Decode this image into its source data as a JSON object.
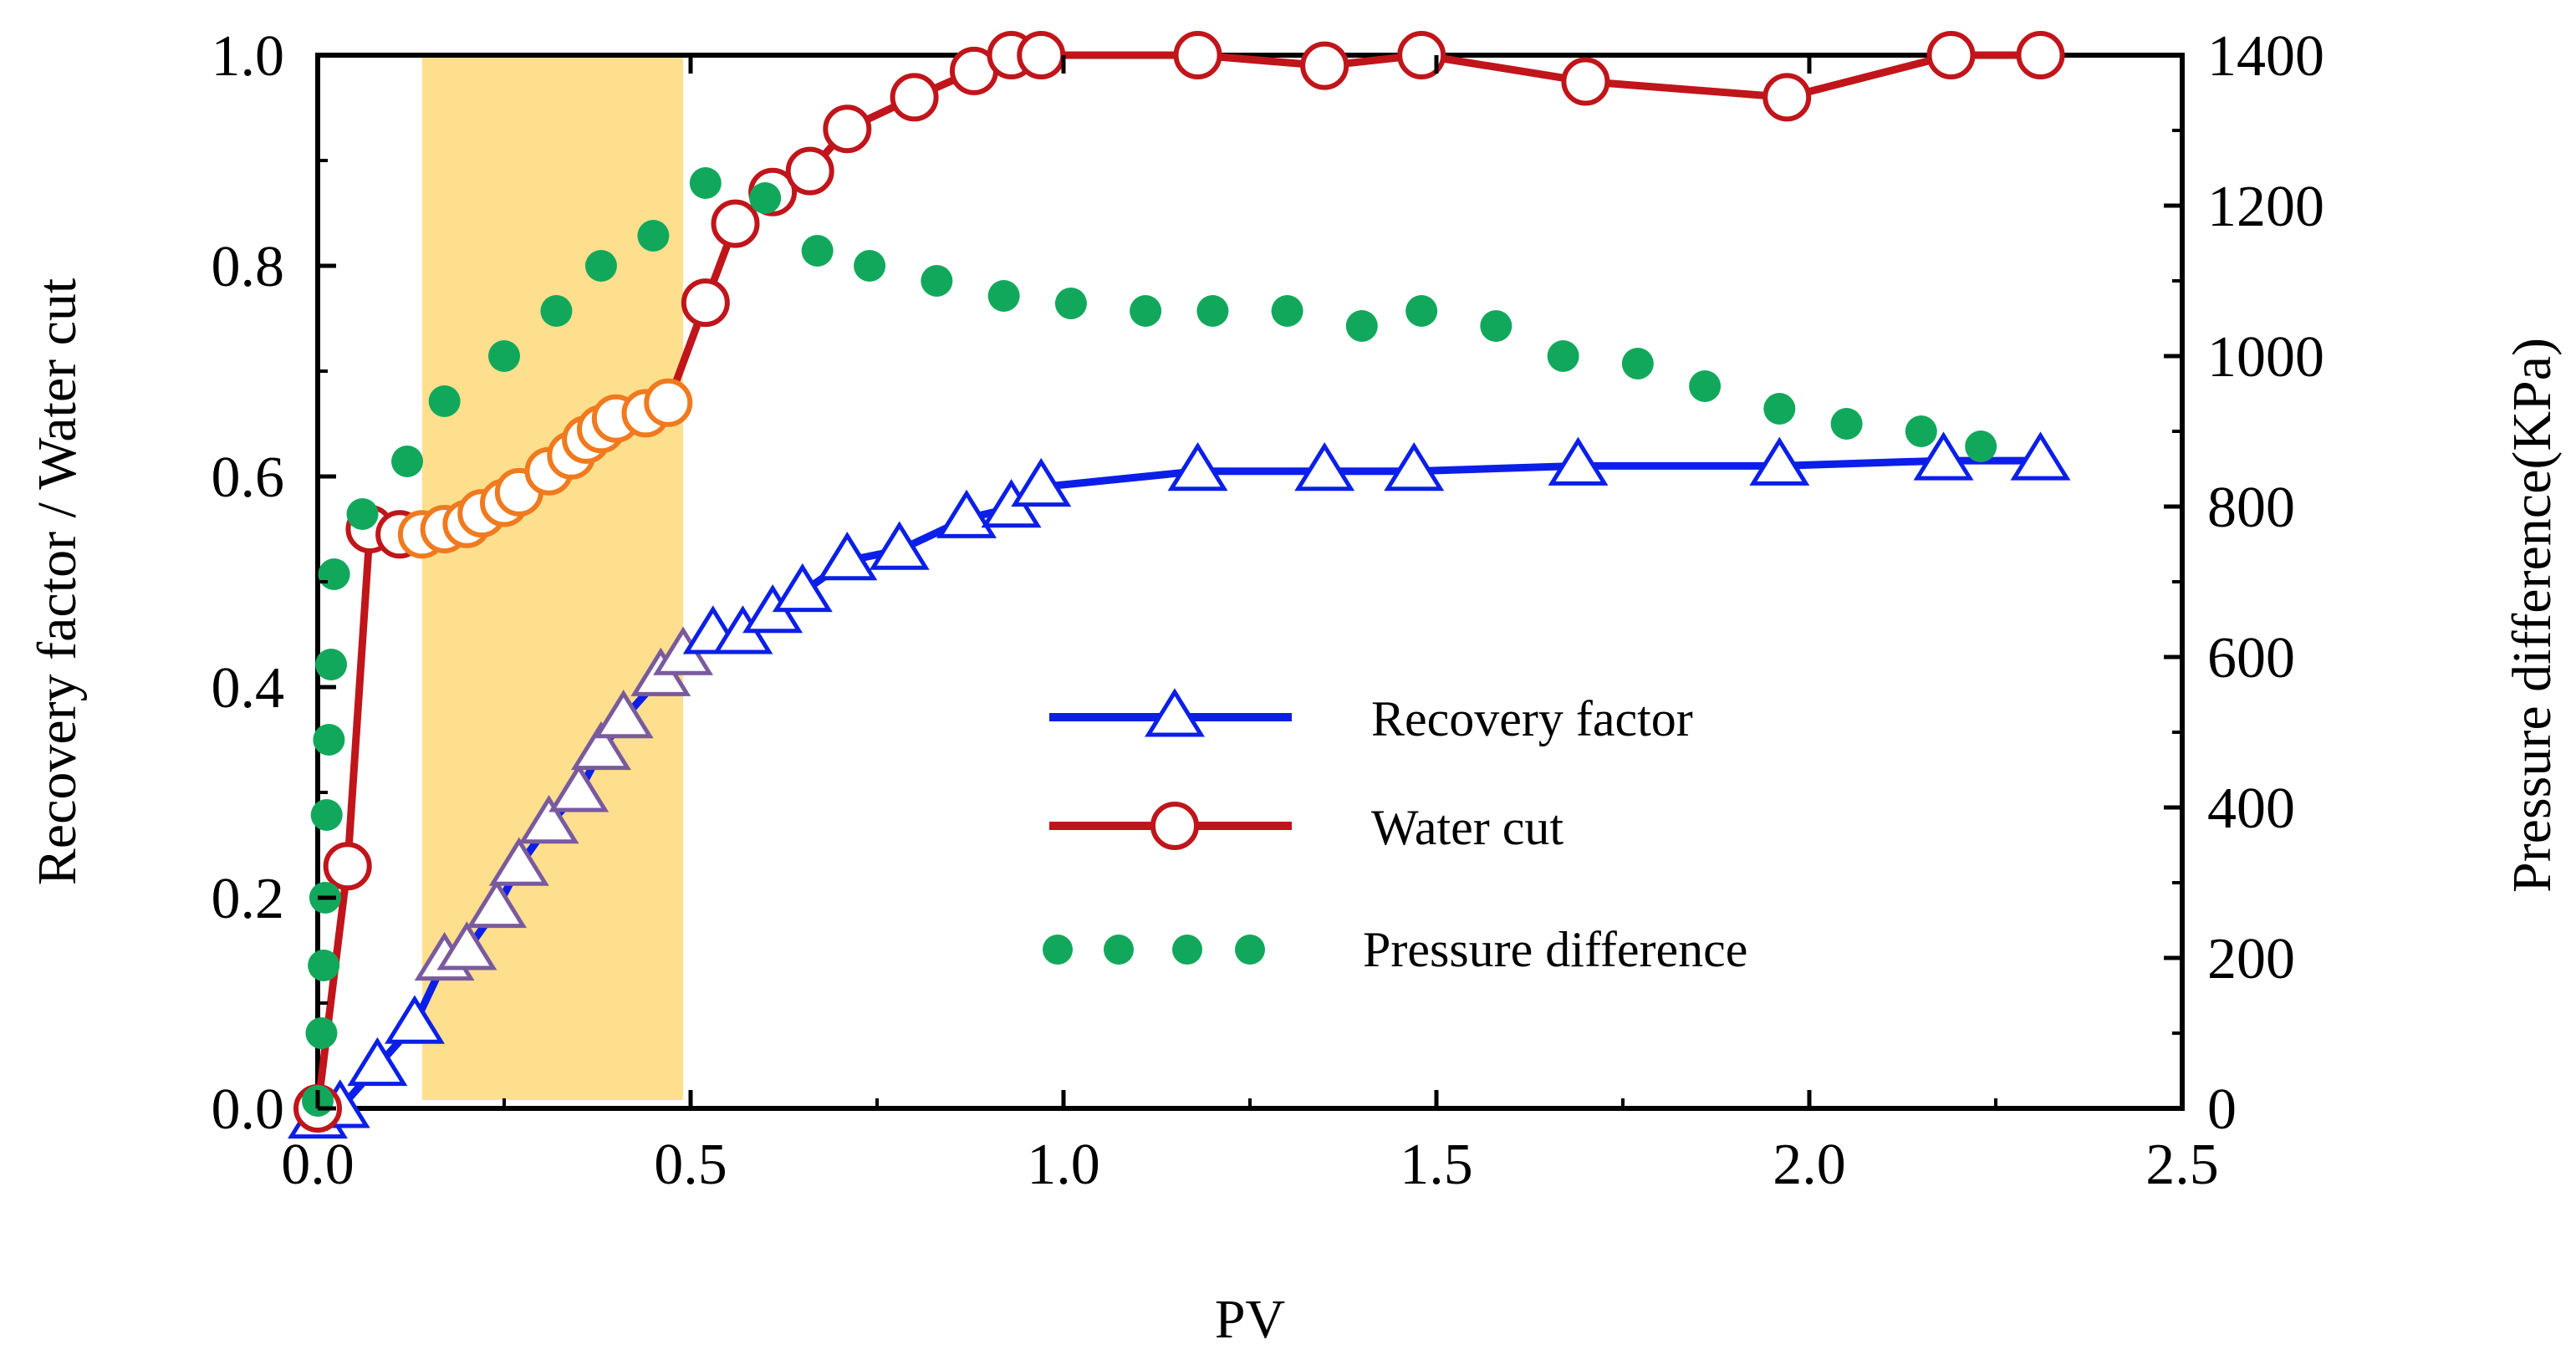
{
  "chart_data": {
    "type": "line",
    "title": "",
    "xlabel": "PV",
    "ylabel": "Recovery factor / Water cut",
    "y2label": "Pressure difference(KPa)",
    "xlim": [
      0.0,
      2.5
    ],
    "ylim": [
      0.0,
      1.0
    ],
    "y2lim": [
      0,
      1400
    ],
    "xticks": [
      "0.0",
      "0.5",
      "1.0",
      "1.5",
      "2.0",
      "2.5"
    ],
    "yticks": [
      "0.0",
      "0.2",
      "0.4",
      "0.6",
      "0.8",
      "1.0"
    ],
    "y2ticks": [
      "0",
      "200",
      "400",
      "600",
      "800",
      "1000",
      "1200",
      "1400"
    ],
    "highlight": {
      "x_from": 0.14,
      "x_to": 0.49,
      "color": "#FDDF8E"
    },
    "legend_position": "center-right",
    "series": [
      {
        "name": "Recovery factor",
        "axis": "left",
        "color": "#0B1FE8",
        "marker": "triangle",
        "x": [
          0.0,
          0.03,
          0.08,
          0.13,
          0.17,
          0.2,
          0.24,
          0.27,
          0.31,
          0.35,
          0.38,
          0.41,
          0.46,
          0.49,
          0.53,
          0.57,
          0.61,
          0.65,
          0.71,
          0.78,
          0.87,
          0.93,
          0.97,
          1.18,
          1.35,
          1.47,
          1.69,
          1.96,
          2.18,
          2.31
        ],
        "y": [
          -0.01,
          0.0,
          0.04,
          0.08,
          0.14,
          0.15,
          0.19,
          0.23,
          0.27,
          0.3,
          0.34,
          0.37,
          0.41,
          0.43,
          0.45,
          0.45,
          0.47,
          0.49,
          0.52,
          0.53,
          0.56,
          0.57,
          0.59,
          0.605,
          0.605,
          0.605,
          0.61,
          0.61,
          0.615,
          0.615
        ]
      },
      {
        "name": "Water cut",
        "axis": "left",
        "color": "#C0151A",
        "marker": "circle",
        "x": [
          0.0,
          0.04,
          0.07,
          0.11,
          0.14,
          0.17,
          0.2,
          0.22,
          0.25,
          0.27,
          0.31,
          0.34,
          0.36,
          0.38,
          0.4,
          0.44,
          0.47,
          0.52,
          0.56,
          0.61,
          0.66,
          0.71,
          0.8,
          0.88,
          0.93,
          0.97,
          1.18,
          1.35,
          1.48,
          1.7,
          1.97,
          2.19,
          2.31
        ],
        "y": [
          0.0,
          0.23,
          0.55,
          0.545,
          0.545,
          0.55,
          0.555,
          0.565,
          0.575,
          0.585,
          0.605,
          0.62,
          0.635,
          0.645,
          0.655,
          0.66,
          0.67,
          0.765,
          0.84,
          0.87,
          0.89,
          0.93,
          0.96,
          0.985,
          1.0,
          1.0,
          1.0,
          0.99,
          1.0,
          0.975,
          0.96,
          1.0,
          1.0
        ]
      },
      {
        "name": "Pressure difference",
        "axis": "right",
        "color": "#12A85C",
        "marker": "dot",
        "x": [
          0.0,
          0.005,
          0.008,
          0.01,
          0.012,
          0.015,
          0.018,
          0.022,
          0.06,
          0.12,
          0.17,
          0.25,
          0.32,
          0.38,
          0.45,
          0.52,
          0.6,
          0.67,
          0.74,
          0.83,
          0.92,
          1.01,
          1.11,
          1.2,
          1.3,
          1.4,
          1.48,
          1.58,
          1.67,
          1.77,
          1.86,
          1.96,
          2.05,
          2.15,
          2.23
        ],
        "y": [
          10,
          100,
          190,
          280,
          390,
          490,
          590,
          710,
          790,
          860,
          940,
          1000,
          1060,
          1120,
          1160,
          1230,
          1210,
          1140,
          1120,
          1100,
          1080,
          1070,
          1060,
          1060,
          1060,
          1040,
          1060,
          1040,
          1000,
          990,
          960,
          930,
          910,
          900,
          880
        ]
      }
    ]
  }
}
